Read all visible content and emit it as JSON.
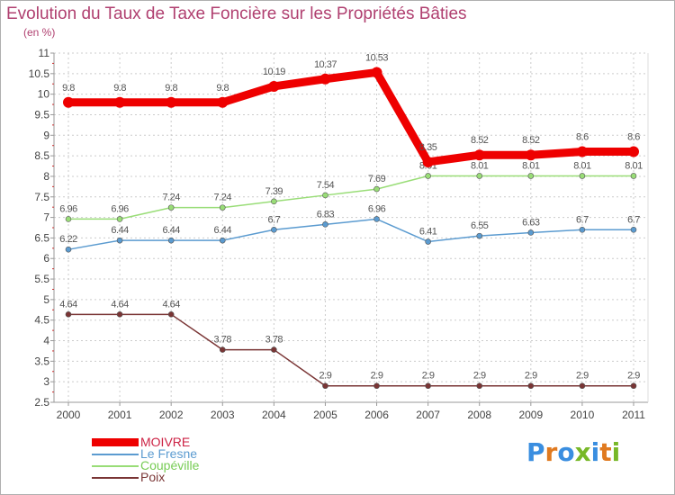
{
  "title": "Evolution du Taux de Taxe Foncière sur les Propriétés Bâties",
  "unit_label": "(en %)",
  "logo": {
    "text": "Proxiti",
    "colors": [
      "#3a8ee0",
      "#e07a20",
      "#3a8ee0",
      "#78b828",
      "#3a8ee0",
      "#e07a20",
      "#78b828"
    ]
  },
  "chart_data": {
    "type": "line",
    "title": "Evolution du Taux de Taxe Foncière sur les Propriétés Bâties",
    "ylabel": "(en %)",
    "xlabel": "",
    "x": [
      "2000",
      "2001",
      "2002",
      "2003",
      "2004",
      "2005",
      "2006",
      "2007",
      "2008",
      "2009",
      "2010",
      "2011"
    ],
    "ylim": [
      2.5,
      11
    ],
    "y_ticks": [
      2.5,
      3,
      3.5,
      4,
      4.5,
      5,
      5.5,
      6,
      6.5,
      7,
      7.5,
      8,
      8.5,
      9,
      9.5,
      10,
      10.5,
      11
    ],
    "y_tick_labels": [
      "2.5",
      "3",
      "3.5",
      "4",
      "4.5",
      "5",
      "5.5",
      "6",
      "6.5",
      "7",
      "7.5",
      "8",
      "8.5",
      "9",
      "9.5",
      "10",
      "10.5",
      "11"
    ],
    "grid": true,
    "legend_position": "bottom-left",
    "series": [
      {
        "name": "MOIVRE",
        "color": "#ee0000",
        "legend_text_color": "#cc2244",
        "emphasis": true,
        "values": [
          9.8,
          9.8,
          9.8,
          9.8,
          10.19,
          10.37,
          10.53,
          8.35,
          8.52,
          8.52,
          8.6,
          8.6
        ],
        "labels": [
          "9.8",
          "9.8",
          "9.8",
          "9.8",
          "10.19",
          "10.37",
          "10.53",
          "8.35",
          "8.52",
          "8.52",
          "8.6",
          "8.6"
        ]
      },
      {
        "name": "Le Fresne",
        "color": "#5b9bd0",
        "legend_text_color": "#5b9bd0",
        "emphasis": false,
        "values": [
          6.22,
          6.44,
          6.44,
          6.44,
          6.7,
          6.83,
          6.96,
          6.41,
          6.55,
          6.63,
          6.7,
          6.7
        ],
        "labels": [
          "6.22",
          "6.44",
          "6.44",
          "6.44",
          "6.7",
          "6.83",
          "6.96",
          "6.41",
          "6.55",
          "6.63",
          "6.7",
          "6.7"
        ]
      },
      {
        "name": "Coupéville",
        "color": "#99dd77",
        "legend_text_color": "#77cc55",
        "emphasis": false,
        "values": [
          6.96,
          6.96,
          7.24,
          7.24,
          7.39,
          7.54,
          7.69,
          8.01,
          8.01,
          8.01,
          8.01,
          8.01
        ],
        "labels": [
          "6.96",
          "6.96",
          "7.24",
          "7.24",
          "7.39",
          "7.54",
          "7.69",
          "8.01",
          "8.01",
          "8.01",
          "8.01",
          "8.01"
        ]
      },
      {
        "name": "Poix",
        "color": "#7a3535",
        "legend_text_color": "#7a3535",
        "emphasis": false,
        "values": [
          4.64,
          4.64,
          4.64,
          3.78,
          3.78,
          2.9,
          2.9,
          2.9,
          2.9,
          2.9,
          2.9,
          2.9
        ],
        "labels": [
          "4.64",
          "4.64",
          "4.64",
          "3.78",
          "3.78",
          "2.9",
          "2.9",
          "2.9",
          "2.9",
          "2.9",
          "2.9",
          "2.9"
        ]
      }
    ]
  }
}
